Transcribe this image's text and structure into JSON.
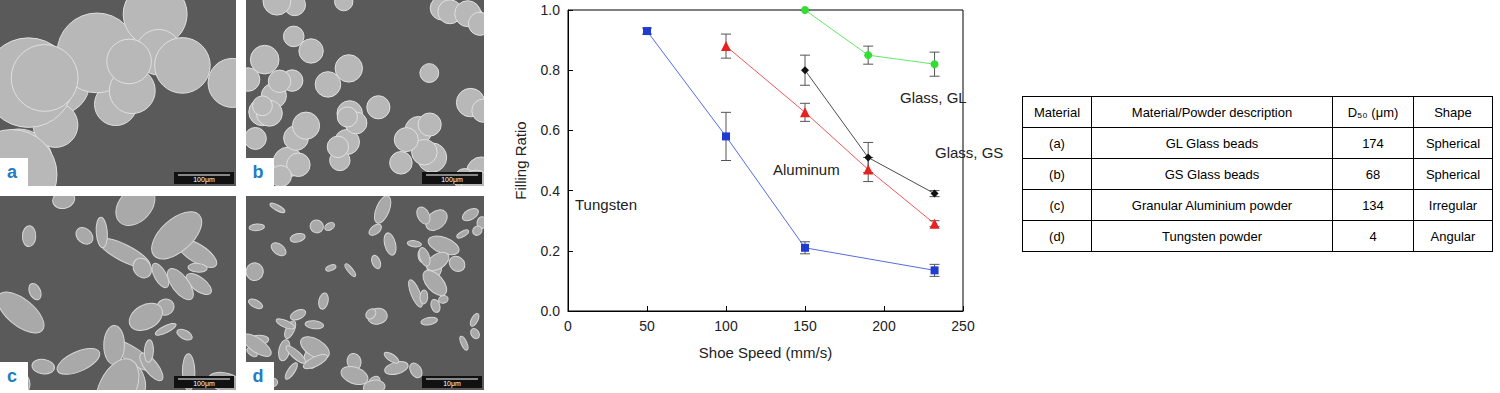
{
  "images": [
    {
      "label": "a",
      "scale_bar": "100μm"
    },
    {
      "label": "b",
      "scale_bar": "100μm"
    },
    {
      "label": "c",
      "scale_bar": "100μm"
    },
    {
      "label": "d",
      "scale_bar": "10μm"
    }
  ],
  "chart_data": {
    "type": "line",
    "x_label": "Shoe Speed (mm/s)",
    "y_label": "Filling Ratio",
    "xlim": [
      0,
      250
    ],
    "xticks": [
      0,
      50,
      100,
      150,
      200,
      250
    ],
    "ylim": [
      0,
      1
    ],
    "yticks": [
      {
        "value": 0,
        "label": "0.0"
      },
      0.2,
      0.4,
      0.6,
      0.8,
      {
        "value": 1,
        "label": "1.0"
      }
    ],
    "grid": false,
    "series": [
      {
        "name": "Tungsten",
        "color": "#1f3bd1",
        "marker": "square",
        "x": [
          50,
          100,
          150,
          232
        ],
        "values": [
          0.93,
          0.58,
          0.21,
          0.135
        ],
        "errors": [
          0.01,
          0.08,
          0.02,
          0.02
        ]
      },
      {
        "name": "Aluminum",
        "color": "#e82020",
        "marker": "triangle",
        "x": [
          100,
          150,
          190,
          232
        ],
        "values": [
          0.88,
          0.66,
          0.47,
          0.29
        ],
        "errors": [
          0.04,
          0.03,
          0.04,
          0.01
        ]
      },
      {
        "name": "Glass, GS",
        "color": "#111111",
        "marker": "diamond",
        "x": [
          150,
          190,
          232
        ],
        "values": [
          0.8,
          0.51,
          0.39
        ],
        "errors": [
          0.05,
          0.05,
          0.01
        ]
      },
      {
        "name": "Glass, GL",
        "color": "#33dd33",
        "marker": "circle",
        "x": [
          150,
          190,
          232
        ],
        "values": [
          1.0,
          0.85,
          0.82
        ],
        "errors": [
          0,
          0.03,
          0.04
        ]
      }
    ]
  },
  "table": {
    "header": [
      "Material",
      "Material/Powder description",
      "D₅₀ (μm)",
      "Shape"
    ],
    "rows": [
      [
        "(a)",
        "GL Glass beads",
        174,
        "Spherical"
      ],
      [
        "(b)",
        "GS Glass beads",
        68,
        "Spherical"
      ],
      [
        "(c)",
        "Granular Aluminium powder",
        134,
        "Irregular"
      ],
      [
        "(d)",
        "Tungsten powder",
        4,
        "Angular"
      ]
    ]
  }
}
